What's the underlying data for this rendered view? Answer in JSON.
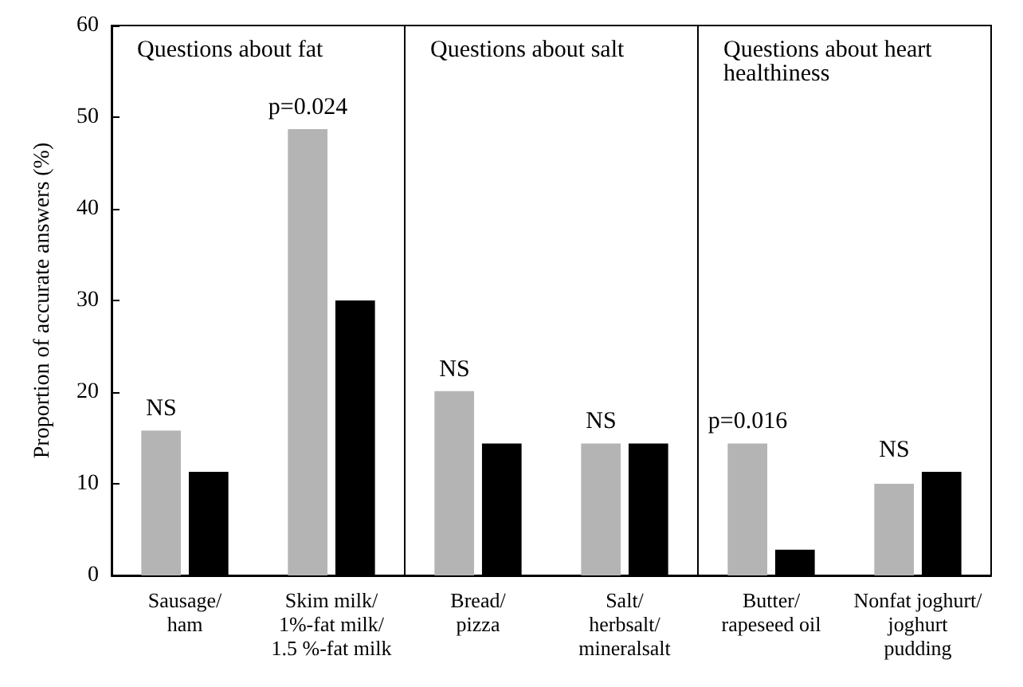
{
  "chart_data": {
    "type": "bar",
    "ylabel": "Proportion of accurate answers (%)",
    "categories": [
      "Sausage/\nham",
      "Skim milk/\n1%-fat milk/\n1.5 %-fat milk",
      "Bread/\npizza",
      "Salt/\nherbsalt/\nmineralsalt",
      "Butter/\nrapeseed oil",
      "Nonfat joghurt/\njoghurt\npudding"
    ],
    "series": [
      {
        "color": "#b4b4b4",
        "values": [
          15.8,
          48.7,
          20.1,
          14.4,
          14.4,
          10
        ]
      },
      {
        "color": "#000000",
        "values": [
          11.3,
          30,
          14.4,
          14.4,
          2.8,
          11.3
        ]
      }
    ],
    "ylim": [
      0,
      60
    ],
    "yticks": [
      0,
      10,
      20,
      30,
      40,
      50,
      60
    ],
    "annotations": [
      "Questions about fat",
      "Questions about salt",
      "Questions about heart\nhealthiness",
      {
        "text": "NS",
        "x": "Sausage/\nham",
        "y": 15.8
      },
      {
        "text": "p=0.024",
        "x": "Skim milk/\n1%-fat milk/\n1.5 %-fat milk",
        "y": 48.7
      },
      {
        "text": "NS",
        "x": "Bread/\npizza",
        "y": 20.1
      },
      {
        "text": "NS",
        "x": "Salt/\nherbsalt/\nmineralsalt",
        "y": 14.4
      },
      {
        "text": "p=0.016",
        "x": "Butter/\nrapeseed oil",
        "y": 14.4
      },
      {
        "text": "NS",
        "x": "Nonfat joghurt/\njoghurt\npudding",
        "y": 11.3
      }
    ]
  }
}
